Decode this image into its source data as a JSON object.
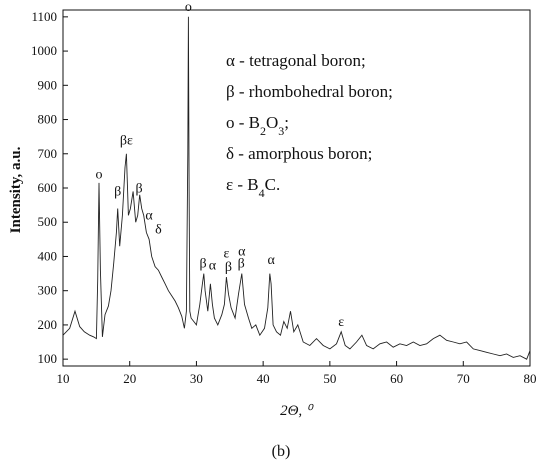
{
  "chart_data": {
    "type": "line",
    "xlabel": "2Θ, ⁰",
    "ylabel": "Intensity, a.u.",
    "xlim": [
      10,
      80
    ],
    "ylim": [
      80,
      1120
    ],
    "x_ticks": [
      "10",
      "20",
      "30",
      "40",
      "50",
      "60",
      "70",
      "80"
    ],
    "y_ticks": [
      "100",
      "200",
      "300",
      "400",
      "500",
      "600",
      "700",
      "800",
      "900",
      "1000",
      "1100"
    ],
    "grid": false,
    "legend_entries": [
      "α - tetragonal boron;",
      "β - rhombohedral boron;",
      "o - B₂O₃;",
      "δ - amorphous boron;",
      "ε - B₄C."
    ],
    "peak_labels": [
      {
        "text": "o",
        "x": 15.4,
        "y": 610
      },
      {
        "text": "β",
        "x": 18.2,
        "y": 560
      },
      {
        "text": "βε",
        "x": 19.5,
        "y": 710
      },
      {
        "text": "β",
        "x": 21.4,
        "y": 570
      },
      {
        "text": "α",
        "x": 22.9,
        "y": 490
      },
      {
        "text": "δ",
        "x": 24.3,
        "y": 450
      },
      {
        "text": "o",
        "x": 28.8,
        "y": 1100
      },
      {
        "text": "β",
        "x": 31.0,
        "y": 350
      },
      {
        "text": "α",
        "x": 32.4,
        "y": 345
      },
      {
        "text": "ε",
        "x": 34.5,
        "y": 380
      },
      {
        "text": "β",
        "x": 34.8,
        "y": 340
      },
      {
        "text": "α",
        "x": 36.8,
        "y": 385
      },
      {
        "text": "β",
        "x": 36.7,
        "y": 350
      },
      {
        "text": "α",
        "x": 41.2,
        "y": 360
      },
      {
        "text": "ε",
        "x": 51.7,
        "y": 180
      }
    ],
    "series": [
      {
        "x": [
          10.0,
          11.0,
          11.8,
          12.5,
          13.2,
          14.0,
          14.6,
          15.0,
          15.2,
          15.4,
          15.6,
          15.9,
          16.3,
          16.8,
          17.2,
          17.6,
          18.0,
          18.2,
          18.5,
          18.9,
          19.3,
          19.5,
          19.8,
          20.1,
          20.5,
          20.9,
          21.2,
          21.5,
          21.8,
          22.1,
          22.5,
          22.9,
          23.3,
          23.8,
          24.3,
          24.8,
          25.3,
          25.8,
          26.3,
          26.8,
          27.3,
          27.8,
          28.2,
          28.5,
          28.7,
          28.8,
          28.9,
          29.0,
          29.2,
          29.6,
          30.0,
          30.5,
          30.9,
          31.1,
          31.3,
          31.7,
          32.1,
          32.4,
          32.7,
          33.2,
          33.8,
          34.2,
          34.5,
          34.8,
          35.2,
          35.8,
          36.3,
          36.8,
          37.2,
          37.8,
          38.3,
          38.9,
          39.5,
          40.2,
          40.7,
          41.0,
          41.2,
          41.5,
          42.0,
          42.6,
          43.1,
          43.6,
          44.1,
          44.6,
          45.2,
          46.0,
          47.0,
          48.0,
          49.0,
          50.0,
          51.0,
          51.7,
          52.3,
          53.0,
          54.0,
          54.8,
          55.5,
          56.5,
          57.5,
          58.5,
          59.5,
          60.5,
          61.5,
          62.5,
          63.5,
          64.5,
          65.5,
          66.5,
          67.5,
          68.5,
          69.5,
          70.5,
          71.5,
          72.5,
          73.5,
          74.5,
          75.5,
          76.5,
          77.5,
          78.5,
          79.5,
          80.0
        ],
        "values": [
          170,
          190,
          240,
          195,
          180,
          170,
          165,
          160,
          330,
          615,
          360,
          165,
          230,
          255,
          300,
          380,
          470,
          540,
          430,
          520,
          660,
          700,
          520,
          540,
          590,
          500,
          520,
          580,
          540,
          520,
          470,
          450,
          400,
          370,
          360,
          340,
          320,
          300,
          285,
          270,
          250,
          225,
          190,
          240,
          700,
          1100,
          600,
          240,
          220,
          210,
          200,
          260,
          320,
          350,
          300,
          240,
          320,
          260,
          220,
          200,
          230,
          260,
          340,
          290,
          250,
          220,
          290,
          350,
          260,
          220,
          190,
          200,
          170,
          190,
          250,
          350,
          320,
          200,
          180,
          170,
          210,
          190,
          240,
          180,
          200,
          150,
          140,
          160,
          140,
          130,
          145,
          180,
          140,
          130,
          150,
          170,
          140,
          130,
          145,
          150,
          135,
          145,
          140,
          150,
          140,
          145,
          160,
          170,
          155,
          150,
          145,
          150,
          130,
          125,
          120,
          115,
          110,
          115,
          105,
          110,
          100,
          125
        ]
      }
    ],
    "caption": "(b)"
  }
}
